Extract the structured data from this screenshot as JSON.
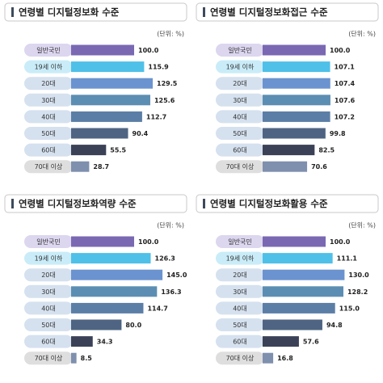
{
  "chart_data": [
    {
      "type": "bar",
      "orientation": "horizontal",
      "title": "연령별 디지털정보화 수준",
      "unit": "(단위: %)",
      "categories": [
        "일반국민",
        "19세 이하",
        "20대",
        "30대",
        "40대",
        "50대",
        "60대",
        "70대 이상"
      ],
      "values": [
        100.0,
        115.9,
        129.5,
        125.6,
        112.7,
        90.4,
        55.5,
        28.7
      ],
      "value_labels": [
        "100.0",
        "115.9",
        "129.5",
        "125.6",
        "112.7",
        "90.4",
        "55.5",
        "28.7"
      ],
      "colors": [
        "#7a68b3",
        "#4fc0e8",
        "#6b93cf",
        "#5c8eb3",
        "#5b7ea6",
        "#4e6482",
        "#3b4258",
        "#7f8fae"
      ],
      "label_colors": [
        "#dcd6ef",
        "#c9ecf8",
        "#d5e1ef",
        "#d5e1ef",
        "#d5e1ef",
        "#d5e1ef",
        "#d5e1ef",
        "#dedede"
      ]
    },
    {
      "type": "bar",
      "orientation": "horizontal",
      "title": "연령별 디지털정보화접근 수준",
      "unit": "(단위: %)",
      "categories": [
        "일반국민",
        "19세 이하",
        "20대",
        "30대",
        "40대",
        "50대",
        "60대",
        "70대 이상"
      ],
      "values": [
        100.0,
        107.1,
        107.4,
        107.6,
        107.2,
        99.8,
        82.5,
        70.6
      ],
      "value_labels": [
        "100.0",
        "107.1",
        "107.4",
        "107.6",
        "107.2",
        "99.8",
        "82.5",
        "70.6"
      ],
      "colors": [
        "#7a68b3",
        "#4fc0e8",
        "#6b93cf",
        "#5c8eb3",
        "#5b7ea6",
        "#4e6482",
        "#3b4258",
        "#7f8fae"
      ],
      "label_colors": [
        "#dcd6ef",
        "#c9ecf8",
        "#d5e1ef",
        "#d5e1ef",
        "#d5e1ef",
        "#d5e1ef",
        "#d5e1ef",
        "#dedede"
      ]
    },
    {
      "type": "bar",
      "orientation": "horizontal",
      "title": "연령별 디지털정보화역량 수준",
      "unit": "(단위: %)",
      "categories": [
        "일반국민",
        "19세 이하",
        "20대",
        "30대",
        "40대",
        "50대",
        "60대",
        "70대 이상"
      ],
      "values": [
        100.0,
        126.3,
        145.0,
        136.3,
        114.7,
        80.0,
        34.3,
        8.5
      ],
      "value_labels": [
        "100.0",
        "126.3",
        "145.0",
        "136.3",
        "114.7",
        "80.0",
        "34.3",
        "8.5"
      ],
      "colors": [
        "#7a68b3",
        "#4fc0e8",
        "#6b93cf",
        "#5c8eb3",
        "#5b7ea6",
        "#4e6482",
        "#3b4258",
        "#7f8fae"
      ],
      "label_colors": [
        "#dcd6ef",
        "#c9ecf8",
        "#d5e1ef",
        "#d5e1ef",
        "#d5e1ef",
        "#d5e1ef",
        "#d5e1ef",
        "#dedede"
      ]
    },
    {
      "type": "bar",
      "orientation": "horizontal",
      "title": "연령별 디지털정보화활용 수준",
      "unit": "(단위: %)",
      "categories": [
        "일반국민",
        "19세 이하",
        "20대",
        "30대",
        "40대",
        "50대",
        "60대",
        "70대 이상"
      ],
      "values": [
        100.0,
        111.1,
        130.0,
        128.2,
        115.0,
        94.8,
        57.6,
        16.8
      ],
      "value_labels": [
        "100.0",
        "111.1",
        "130.0",
        "128.2",
        "115.0",
        "94.8",
        "57.6",
        "16.8"
      ],
      "colors": [
        "#7a68b3",
        "#4fc0e8",
        "#6b93cf",
        "#5c8eb3",
        "#5b7ea6",
        "#4e6482",
        "#3b4258",
        "#7f8fae"
      ],
      "label_colors": [
        "#dcd6ef",
        "#c9ecf8",
        "#d5e1ef",
        "#d5e1ef",
        "#d5e1ef",
        "#d5e1ef",
        "#d5e1ef",
        "#dedede"
      ]
    }
  ]
}
